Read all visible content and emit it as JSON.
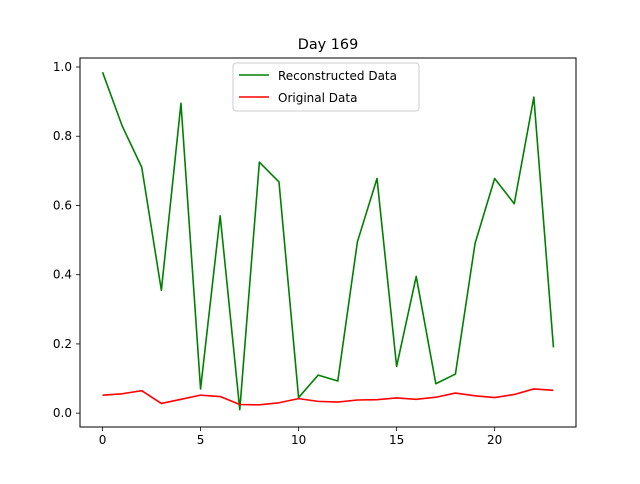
{
  "chart_data": {
    "type": "line",
    "title": "Day 169",
    "xlabel": "",
    "ylabel": "",
    "xlim": [
      -1.15,
      24.15
    ],
    "ylim": [
      -0.04,
      1.026
    ],
    "xticks": [
      0,
      5,
      10,
      15,
      20
    ],
    "yticks": [
      0.0,
      0.2,
      0.4,
      0.6,
      0.8,
      1.0
    ],
    "ytick_labels": [
      "0.0",
      "0.2",
      "0.4",
      "0.6",
      "0.8",
      "1.0"
    ],
    "grid": false,
    "legend_position": "top-center",
    "x": [
      0,
      1,
      2,
      3,
      4,
      5,
      6,
      7,
      8,
      9,
      10,
      11,
      12,
      13,
      14,
      15,
      16,
      17,
      18,
      19,
      20,
      21,
      22,
      23
    ],
    "series": [
      {
        "name": "Reconstructed Data",
        "color": "#008000",
        "values": [
          0.985,
          0.83,
          0.71,
          0.355,
          0.895,
          0.07,
          0.57,
          0.01,
          0.725,
          0.668,
          0.045,
          0.11,
          0.093,
          0.495,
          0.678,
          0.135,
          0.395,
          0.085,
          0.113,
          0.49,
          0.678,
          0.605,
          0.913,
          0.19
        ]
      },
      {
        "name": "Original Data",
        "color": "#ff0000",
        "values": [
          0.052,
          0.056,
          0.065,
          0.028,
          0.04,
          0.052,
          0.048,
          0.025,
          0.024,
          0.03,
          0.042,
          0.034,
          0.032,
          0.038,
          0.039,
          0.044,
          0.04,
          0.046,
          0.058,
          0.05,
          0.045,
          0.054,
          0.07,
          0.066
        ]
      }
    ]
  }
}
